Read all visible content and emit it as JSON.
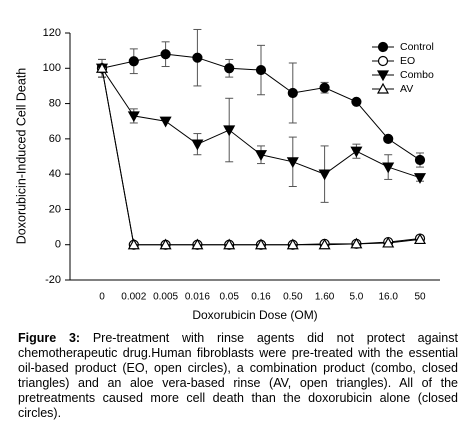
{
  "chart_data": {
    "type": "line",
    "x_label": "Doxorubicin Dose (ΟM)",
    "y_label": "Doxorubicin-Induced Cell Death",
    "categories": [
      "0",
      "0.002",
      "0.005",
      "0.016",
      "0.05",
      "0.16",
      "0.50",
      "1.60",
      "5.0",
      "16.0",
      "50"
    ],
    "ylim": [
      -20,
      120
    ],
    "yticks": [
      -20,
      0,
      20,
      40,
      60,
      80,
      100,
      120
    ],
    "legend": "upper right",
    "series": [
      {
        "name": "Control",
        "color": "#000000",
        "marker": "circle",
        "filled": true,
        "values": [
          100,
          104,
          108,
          106,
          100,
          99,
          86,
          89,
          81,
          60,
          48
        ],
        "errors": [
          5,
          7,
          7,
          16,
          5,
          14,
          17,
          3,
          0,
          0,
          4
        ]
      },
      {
        "name": "EO",
        "color": "#000000",
        "marker": "circle",
        "filled": false,
        "values": [
          100,
          0,
          0,
          0,
          0,
          0,
          0,
          0.5,
          0.5,
          1.5,
          3.5
        ],
        "errors": [
          5,
          0,
          0,
          0,
          0,
          0,
          0,
          0,
          0,
          1,
          1
        ]
      },
      {
        "name": "Combo",
        "color": "#000000",
        "marker": "triangle-down",
        "filled": true,
        "values": [
          100,
          73,
          70,
          57,
          65,
          51,
          47,
          40,
          53,
          44,
          38
        ],
        "errors": [
          5,
          4,
          0,
          6,
          18,
          5,
          14,
          16,
          4,
          7,
          2
        ]
      },
      {
        "name": "AV",
        "color": "#000000",
        "marker": "triangle-up",
        "filled": false,
        "values": [
          100,
          0,
          0,
          0,
          0,
          0,
          0,
          0,
          0.5,
          1,
          3
        ],
        "errors": [
          5,
          0,
          0,
          0,
          0,
          0,
          0,
          0,
          0,
          0,
          0
        ]
      }
    ]
  },
  "caption": {
    "label": "Figure 3:",
    "text": "Pre-treatment with rinse agents did not protect against chemotherapeutic drug.Human fibroblasts were pre-treated with the essential oil-based product (EO, open circles), a combination product (combo, closed triangles) and an aloe vera-based rinse (AV, open triangles).  All of the pretreatments caused more cell death than the doxorubicin alone (closed circles)."
  }
}
